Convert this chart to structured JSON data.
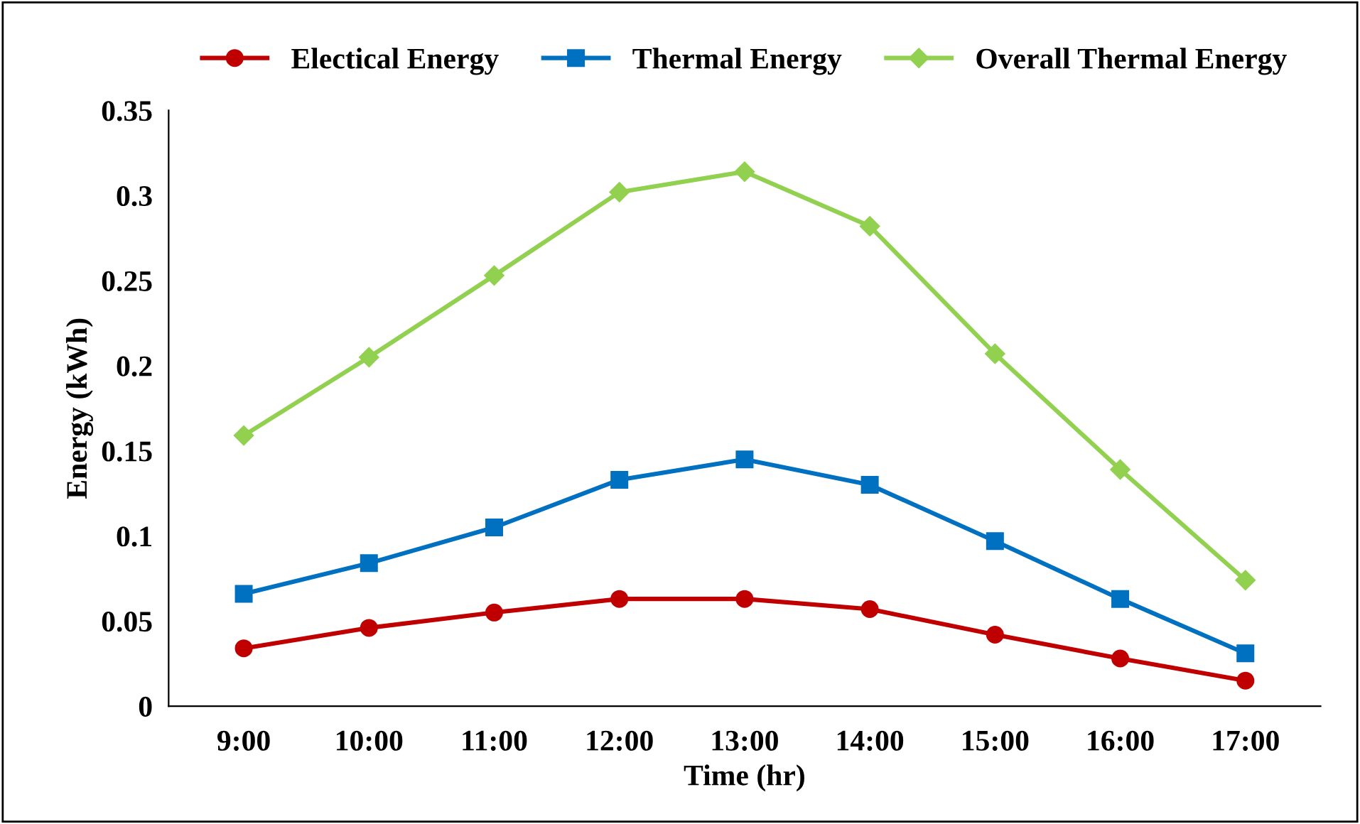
{
  "chart_data": {
    "type": "line",
    "xlabel": "Time (hr)",
    "ylabel": "Energy (kWh)",
    "categories": [
      "9:00",
      "10:00",
      "11:00",
      "12:00",
      "13:00",
      "14:00",
      "15:00",
      "16:00",
      "17:00"
    ],
    "series": [
      {
        "name": "Electical Energy",
        "color": "#c00000",
        "marker": "circle",
        "values": [
          0.034,
          0.046,
          0.055,
          0.063,
          0.063,
          0.057,
          0.042,
          0.028,
          0.015
        ]
      },
      {
        "name": "Thermal Energy",
        "color": "#0070c0",
        "marker": "square",
        "values": [
          0.066,
          0.084,
          0.105,
          0.133,
          0.145,
          0.13,
          0.097,
          0.063,
          0.031
        ]
      },
      {
        "name": "Overall Thermal Energy",
        "color": "#92d050",
        "marker": "diamond",
        "values": [
          0.159,
          0.205,
          0.253,
          0.302,
          0.314,
          0.282,
          0.207,
          0.139,
          0.074
        ]
      }
    ],
    "ylim": [
      0,
      0.35
    ],
    "yticks": [
      0,
      0.05,
      0.1,
      0.15,
      0.2,
      0.25,
      0.3,
      0.35
    ],
    "legend": "top",
    "line_style": "solid"
  }
}
